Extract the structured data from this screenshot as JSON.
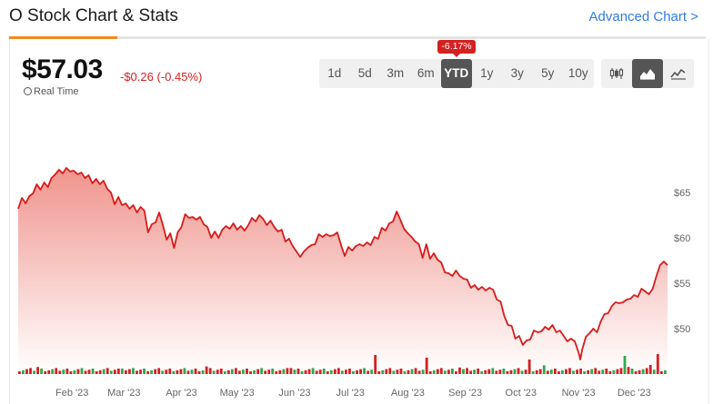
{
  "header": {
    "title": "O Stock Chart & Stats",
    "advanced_link": "Advanced Chart >"
  },
  "quote": {
    "price": "$57.03",
    "change": "-$0.26 (-0.45%)",
    "realtime_label": "Real Time"
  },
  "period_badge": "-6.17%",
  "periods": [
    "1d",
    "5d",
    "3m",
    "6m",
    "YTD",
    "1y",
    "3y",
    "5y",
    "10y"
  ],
  "active_period": "YTD",
  "chart_types": [
    {
      "name": "candlestick-icon",
      "active": false
    },
    {
      "name": "mountain-icon",
      "active": true
    },
    {
      "name": "line-chart-icon",
      "active": false
    }
  ],
  "colors": {
    "line": "#d91a1a",
    "area_top": "#f29b93",
    "volume_up": "#2fa84f",
    "volume_down": "#d42020",
    "accent_tab": "#f08a1c",
    "link": "#2e7be6"
  },
  "chart_data": {
    "type": "area",
    "ylim": [
      45,
      68
    ],
    "yticks": [
      65,
      60,
      55,
      50
    ],
    "ytick_labels": [
      "$65",
      "$60",
      "$55",
      "$50"
    ],
    "xtick_labels": [
      "Feb '23",
      "Mar '23",
      "Apr '23",
      "May '23",
      "Jun '23",
      "Jul '23",
      "Aug '23",
      "Sep '23",
      "Oct '23",
      "Nov '23",
      "Dec '23"
    ],
    "xtick_days": [
      31,
      59,
      90,
      120,
      151,
      181,
      212,
      243,
      273,
      304,
      334
    ],
    "x_domain_days": [
      2,
      352
    ],
    "series": [
      {
        "values": [
          [
            2,
            63.2
          ],
          [
            4,
            64.4
          ],
          [
            6,
            63.8
          ],
          [
            8,
            64.6
          ],
          [
            10,
            64.9
          ],
          [
            12,
            65.9
          ],
          [
            14,
            65.3
          ],
          [
            16,
            66.1
          ],
          [
            18,
            65.6
          ],
          [
            20,
            66.6
          ],
          [
            22,
            67.0
          ],
          [
            24,
            67.5
          ],
          [
            26,
            67.1
          ],
          [
            28,
            67.7
          ],
          [
            30,
            67.3
          ],
          [
            32,
            67.4
          ],
          [
            34,
            67.0
          ],
          [
            36,
            67.2
          ],
          [
            38,
            66.6
          ],
          [
            40,
            66.9
          ],
          [
            42,
            66.0
          ],
          [
            44,
            66.5
          ],
          [
            46,
            65.9
          ],
          [
            48,
            66.3
          ],
          [
            50,
            65.4
          ],
          [
            52,
            65.0
          ],
          [
            54,
            63.7
          ],
          [
            56,
            64.5
          ],
          [
            58,
            63.6
          ],
          [
            60,
            63.8
          ],
          [
            62,
            63.2
          ],
          [
            64,
            63.6
          ],
          [
            66,
            62.8
          ],
          [
            68,
            63.4
          ],
          [
            70,
            63.0
          ],
          [
            72,
            60.6
          ],
          [
            74,
            61.5
          ],
          [
            76,
            61.7
          ],
          [
            78,
            62.8
          ],
          [
            80,
            61.4
          ],
          [
            82,
            59.8
          ],
          [
            84,
            60.5
          ],
          [
            86,
            58.9
          ],
          [
            88,
            60.6
          ],
          [
            90,
            61.2
          ],
          [
            92,
            62.6
          ],
          [
            94,
            62.2
          ],
          [
            96,
            62.3
          ],
          [
            98,
            62.0
          ],
          [
            100,
            62.3
          ],
          [
            102,
            61.5
          ],
          [
            104,
            61.2
          ],
          [
            106,
            60.0
          ],
          [
            108,
            60.7
          ],
          [
            110,
            60.0
          ],
          [
            112,
            60.9
          ],
          [
            114,
            61.3
          ],
          [
            116,
            61.0
          ],
          [
            118,
            61.6
          ],
          [
            120,
            60.9
          ],
          [
            122,
            61.3
          ],
          [
            124,
            60.8
          ],
          [
            126,
            61.4
          ],
          [
            128,
            62.2
          ],
          [
            130,
            61.8
          ],
          [
            132,
            62.5
          ],
          [
            134,
            62.1
          ],
          [
            136,
            61.4
          ],
          [
            138,
            61.9
          ],
          [
            140,
            61.2
          ],
          [
            142,
            60.7
          ],
          [
            144,
            60.9
          ],
          [
            146,
            59.6
          ],
          [
            148,
            59.9
          ],
          [
            150,
            59.1
          ],
          [
            152,
            58.5
          ],
          [
            154,
            57.9
          ],
          [
            156,
            58.5
          ],
          [
            158,
            58.9
          ],
          [
            160,
            59.2
          ],
          [
            162,
            59.3
          ],
          [
            164,
            60.4
          ],
          [
            166,
            60.1
          ],
          [
            168,
            60.4
          ],
          [
            170,
            60.2
          ],
          [
            172,
            60.3
          ],
          [
            174,
            60.6
          ],
          [
            176,
            59.2
          ],
          [
            178,
            58.0
          ],
          [
            180,
            59.0
          ],
          [
            182,
            58.6
          ],
          [
            184,
            59.1
          ],
          [
            186,
            59.3
          ],
          [
            188,
            59.1
          ],
          [
            190,
            59.5
          ],
          [
            192,
            59.2
          ],
          [
            194,
            60.1
          ],
          [
            196,
            59.9
          ],
          [
            198,
            61.1
          ],
          [
            200,
            60.8
          ],
          [
            202,
            61.6
          ],
          [
            204,
            61.8
          ],
          [
            206,
            62.9
          ],
          [
            208,
            62.0
          ],
          [
            210,
            61.0
          ],
          [
            212,
            60.5
          ],
          [
            214,
            60.1
          ],
          [
            216,
            59.6
          ],
          [
            218,
            59.3
          ],
          [
            220,
            57.8
          ],
          [
            222,
            59.3
          ],
          [
            224,
            57.7
          ],
          [
            226,
            58.3
          ],
          [
            228,
            57.6
          ],
          [
            230,
            57.3
          ],
          [
            232,
            56.2
          ],
          [
            234,
            56.1
          ],
          [
            236,
            55.8
          ],
          [
            238,
            56.4
          ],
          [
            240,
            55.8
          ],
          [
            242,
            55.5
          ],
          [
            244,
            55.4
          ],
          [
            246,
            54.5
          ],
          [
            248,
            54.8
          ],
          [
            250,
            54.3
          ],
          [
            252,
            54.6
          ],
          [
            254,
            54.2
          ],
          [
            256,
            54.5
          ],
          [
            258,
            54.3
          ],
          [
            260,
            53.2
          ],
          [
            262,
            53.0
          ],
          [
            264,
            51.4
          ],
          [
            266,
            50.4
          ],
          [
            268,
            50.3
          ],
          [
            270,
            48.9
          ],
          [
            272,
            49.2
          ],
          [
            274,
            48.2
          ],
          [
            276,
            48.7
          ],
          [
            278,
            48.8
          ],
          [
            280,
            49.8
          ],
          [
            282,
            49.6
          ],
          [
            284,
            49.7
          ],
          [
            286,
            50.2
          ],
          [
            288,
            49.9
          ],
          [
            290,
            50.4
          ],
          [
            292,
            49.6
          ],
          [
            294,
            49.8
          ],
          [
            296,
            49.2
          ],
          [
            298,
            48.6
          ],
          [
            300,
            48.9
          ],
          [
            302,
            48.6
          ],
          [
            304,
            47.4
          ],
          [
            305,
            46.6
          ],
          [
            306,
            47.7
          ],
          [
            308,
            49.1
          ],
          [
            310,
            49.5
          ],
          [
            312,
            50.0
          ],
          [
            314,
            49.6
          ],
          [
            316,
            50.8
          ],
          [
            318,
            51.6
          ],
          [
            320,
            51.7
          ],
          [
            322,
            52.5
          ],
          [
            324,
            52.9
          ],
          [
            326,
            52.8
          ],
          [
            328,
            52.9
          ],
          [
            330,
            53.2
          ],
          [
            332,
            53.3
          ],
          [
            334,
            53.7
          ],
          [
            336,
            53.5
          ],
          [
            338,
            54.4
          ],
          [
            340,
            54.1
          ],
          [
            342,
            53.8
          ],
          [
            344,
            54.4
          ],
          [
            346,
            55.8
          ],
          [
            348,
            57.0
          ],
          [
            350,
            57.4
          ],
          [
            352,
            57.0
          ]
        ]
      }
    ],
    "volume": [
      "d",
      "u",
      "d",
      "d",
      "u",
      "d",
      "u",
      "d",
      "d",
      "u",
      "d",
      "d",
      "u",
      "d",
      "d",
      "u",
      "d",
      "u",
      "d",
      "d",
      "u",
      "d",
      "d",
      "u",
      "d",
      "u",
      "d",
      "d",
      "u",
      "d",
      "d",
      "u",
      "d",
      "d",
      "u",
      "d",
      "u",
      "d",
      "d",
      "u",
      "d",
      "d",
      "u",
      "d",
      "d",
      "u",
      "d",
      "u",
      "d",
      "d",
      "u",
      "d",
      "d",
      "u",
      "d",
      "d",
      "u",
      "d",
      "u",
      "d",
      "d",
      "u",
      "d",
      "d",
      "u",
      "d",
      "u",
      "d",
      "d",
      "u",
      "d",
      "d",
      "u",
      "d",
      "d",
      "u",
      "d",
      "u",
      "d",
      "d",
      "u",
      "d",
      "d",
      "u",
      "d",
      "u",
      "d",
      "d",
      "u",
      "d",
      "d",
      "u",
      "d",
      "d",
      "u",
      "d",
      "u",
      "d",
      "d",
      "u",
      "d",
      "d",
      "u",
      "d",
      "d",
      "u",
      "d",
      "u",
      "d",
      "d",
      "u",
      "d",
      "d",
      "u",
      "d",
      "d",
      "u",
      "d",
      "u",
      "d",
      "d",
      "u",
      "d",
      "d",
      "u",
      "d",
      "u",
      "d",
      "d",
      "u",
      "d",
      "d",
      "u",
      "d",
      "d",
      "u",
      "d",
      "u",
      "d",
      "d",
      "u",
      "d",
      "d",
      "u",
      "d",
      "u",
      "d",
      "d",
      "u",
      "d",
      "d",
      "u",
      "d",
      "d",
      "u",
      "d",
      "u",
      "d",
      "d",
      "u",
      "d",
      "d",
      "u",
      "d",
      "d",
      "u",
      "d",
      "u",
      "d",
      "d",
      "u",
      "d",
      "d",
      "u",
      "d",
      "d",
      "u"
    ],
    "grid": false,
    "legend": "none"
  }
}
